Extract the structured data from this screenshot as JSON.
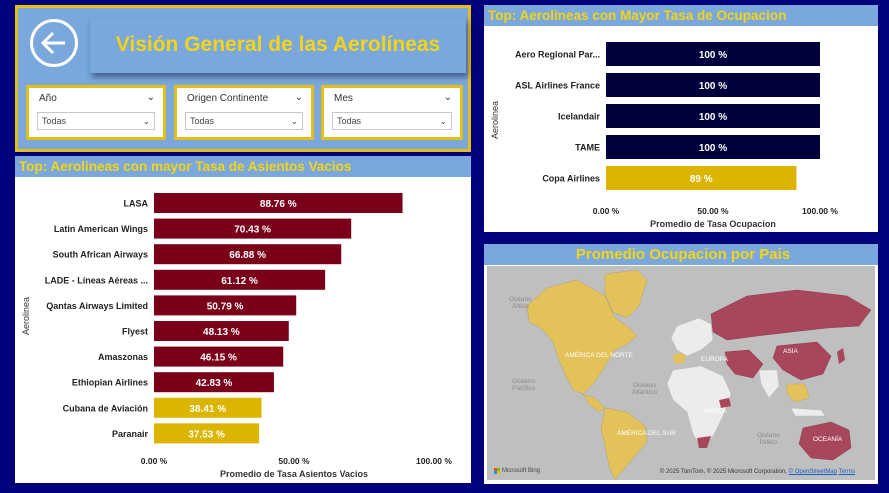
{
  "colors": {
    "background": "#00007a",
    "accent_yellow": "#f4d418",
    "panel_blue": "#7aa8dc",
    "bar_red": "#7a0019",
    "bar_navy": "#00003c",
    "bar_gold": "#dcb500",
    "map_highlight_red": "#a8475c",
    "map_highlight_gold": "#e4c25a"
  },
  "header": {
    "title": "Visión General de las Aerolíneas",
    "back_icon": "arrow-left-icon"
  },
  "slicers": [
    {
      "label": "Año",
      "value": "Todas"
    },
    {
      "label": "Origen Continente",
      "value": "Todas"
    },
    {
      "label": "Mes",
      "value": "Todas"
    }
  ],
  "empty_seats": {
    "title": "Top: Aerolineas con mayor Tasa de Asientos Vacios"
  },
  "occupancy": {
    "title": "Top: Aerolineas con Mayor Tasa de Ocupacion"
  },
  "map": {
    "title": "Promedio Ocupacion por Pais",
    "labels": {
      "arctic": "Océano\nÁrtico",
      "north_america": "AMÉRICA DEL NORTE",
      "europe": "EUROPA",
      "asia": "ASIA",
      "pacific": "Océano\nPacífico",
      "atlantic": "Océano\nAtlántico",
      "africa": "ÁFRICA",
      "south_america": "AMÉRICA DEL SUR",
      "indian": "Océano\nÍndico",
      "oceania": "OCEANÍA"
    },
    "bing": "Microsoft Bing",
    "credit_text": "© 2025 TomTom, © 2025 Microsoft Corporation,",
    "credit_link": "© OpenStreetMap",
    "terms": "Terms"
  },
  "chart_data": [
    {
      "type": "bar",
      "orientation": "horizontal",
      "title": "Top: Aerolineas con mayor Tasa de Asientos Vacios",
      "xlabel": "Promedio de Tasa Asientos Vacios",
      "ylabel": "Aerolinea",
      "xlim": [
        0,
        100
      ],
      "x_ticks": [
        "0.00 %",
        "50.00 %",
        "100.00 %"
      ],
      "categories": [
        "LASA",
        "Latin American Wings",
        "South African Airways",
        "LADE - Líneas Aéreas ...",
        "Qantas Airways Limited",
        "Flyest",
        "Amaszonas",
        "Ethiopian Airlines",
        "Cubana de Aviación",
        "Paranair"
      ],
      "values": [
        88.76,
        70.43,
        66.88,
        61.12,
        50.79,
        48.13,
        46.15,
        42.83,
        38.41,
        37.53
      ],
      "data_labels": [
        "88.76 %",
        "70.43 %",
        "66.88 %",
        "61.12 %",
        "50.79 %",
        "48.13 %",
        "46.15 %",
        "42.83 %",
        "38.41 %",
        "37.53 %"
      ],
      "bar_colors": [
        "#7a0019",
        "#7a0019",
        "#7a0019",
        "#7a0019",
        "#7a0019",
        "#7a0019",
        "#7a0019",
        "#7a0019",
        "#dcb500",
        "#dcb500"
      ],
      "grid": false
    },
    {
      "type": "bar",
      "orientation": "horizontal",
      "title": "Top: Aerolineas con Mayor Tasa de Ocupacion",
      "xlabel": "Promedio de Tasa Ocupacion",
      "ylabel": "Aerolinea",
      "xlim": [
        0,
        100
      ],
      "x_ticks": [
        "0.00 %",
        "50.00 %",
        "100.00 %"
      ],
      "categories": [
        "Aero Regional Par...",
        "ASL Airlines France",
        "Icelandair",
        "TAME",
        "Copa Airlines"
      ],
      "values": [
        100,
        100,
        100,
        100,
        89
      ],
      "data_labels": [
        "100 %",
        "100 %",
        "100 %",
        "100 %",
        "89 %"
      ],
      "bar_colors": [
        "#00003c",
        "#00003c",
        "#00003c",
        "#00003c",
        "#dcb500"
      ],
      "grid": false
    }
  ]
}
